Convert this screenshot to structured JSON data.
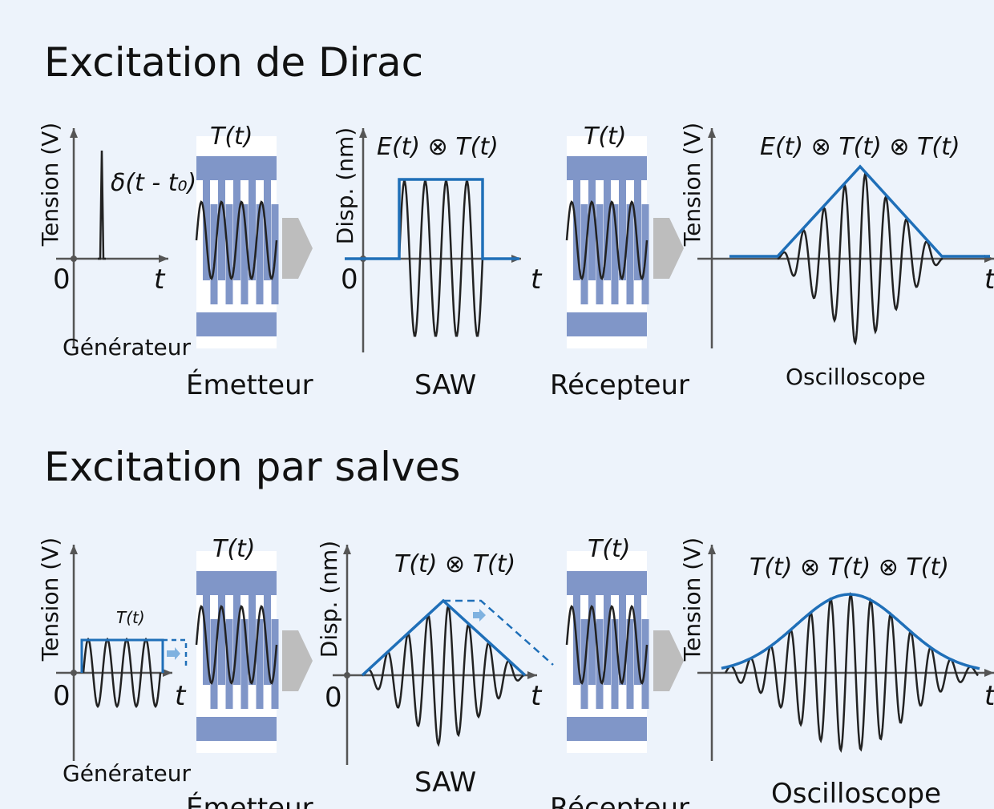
{
  "sections": [
    {
      "title": "Excitation de Dirac",
      "generator": {
        "ylabel": "Tension (V)",
        "origin": "0",
        "xlabel": "t",
        "pulse_label": "δ(t - t₀)",
        "caption": "Générateur"
      },
      "emitter": {
        "label": "T(t)",
        "caption": "Émetteur"
      },
      "saw": {
        "ylabel": "Disp. (nm)",
        "formula": "E(t) ⊗ T(t)",
        "origin": "0",
        "xlabel": "t",
        "caption": "SAW"
      },
      "receiver": {
        "label": "T(t)",
        "caption": "Récepteur"
      },
      "scope": {
        "ylabel": "Tension (V)",
        "formula": "E(t) ⊗ T(t) ⊗ T(t)",
        "xlabel": "t",
        "caption": "Oscilloscope"
      }
    },
    {
      "title": "Excitation par salves",
      "generator": {
        "ylabel": "Tension (V)",
        "origin": "0",
        "xlabel": "t",
        "pulse_label": "T(t)",
        "caption": "Générateur"
      },
      "emitter": {
        "label": "T(t)",
        "caption": "Émetteur"
      },
      "saw": {
        "ylabel": "Disp. (nm)",
        "formula": "T(t) ⊗ T(t)",
        "origin": "0",
        "xlabel": "t",
        "caption": "SAW"
      },
      "receiver": {
        "label": "T(t)",
        "caption": "Récepteur"
      },
      "scope": {
        "ylabel": "Tension (V)",
        "formula": "T(t) ⊗ T(t) ⊗ T(t)",
        "xlabel": "t",
        "caption": "Oscilloscope"
      }
    }
  ]
}
